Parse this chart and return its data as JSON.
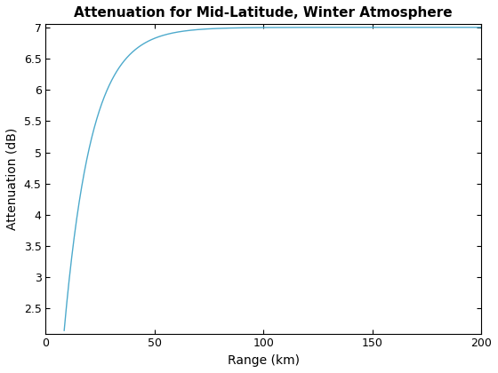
{
  "title": "Attenuation for Mid-Latitude, Winter Atmosphere",
  "xlabel": "Range (km)",
  "ylabel": "Attenuation (dB)",
  "line_color": "#4daacc",
  "xlim": [
    0,
    200
  ],
  "ylim": [
    2.1,
    7.05
  ],
  "xticks": [
    0,
    50,
    100,
    150,
    200
  ],
  "yticks": [
    2.5,
    3.0,
    3.5,
    4.0,
    4.5,
    5.0,
    5.5,
    6.0,
    6.5,
    7.0
  ],
  "x_start": 8.5,
  "x_end": 200.0,
  "sat_val": 7.0,
  "y_start": 2.15,
  "tau": 12.5,
  "num_points": 1000,
  "linewidth": 1.0,
  "title_fontsize": 11,
  "label_fontsize": 10,
  "tick_fontsize": 9,
  "background_color": "#ffffff"
}
